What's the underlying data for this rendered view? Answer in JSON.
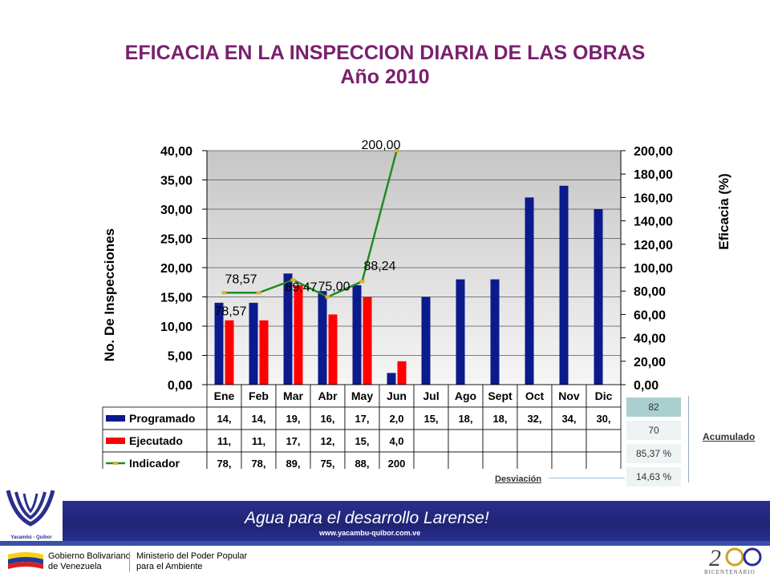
{
  "title": "EFICACIA EN LA INSPECCION DIARIA DE LAS OBRAS",
  "subtitle": "Año 2010",
  "chart_data": {
    "type": "bar",
    "categories": [
      "Ene",
      "Feb",
      "Mar",
      "Abr",
      "May",
      "Jun",
      "Jul",
      "Ago",
      "Sept",
      "Oct",
      "Nov",
      "Dic"
    ],
    "ylabel": "No. De Inspecciones",
    "y2label": "Eficacia (%)",
    "ylim": [
      0,
      40
    ],
    "y2lim": [
      0,
      200
    ],
    "yticks": [
      "0,00",
      "5,00",
      "10,00",
      "15,00",
      "20,00",
      "25,00",
      "30,00",
      "35,00",
      "40,00"
    ],
    "y2ticks": [
      "0,00",
      "20,00",
      "40,00",
      "60,00",
      "80,00",
      "100,00",
      "120,00",
      "140,00",
      "160,00",
      "180,00",
      "200,00"
    ],
    "grid": true,
    "series": [
      {
        "name": "Programado",
        "type": "bar",
        "axis": "left",
        "color": "#0b1a8c",
        "values": [
          14,
          14,
          19,
          16,
          17,
          2,
          15,
          18,
          18,
          32,
          34,
          30
        ],
        "table_values": [
          "14,",
          "14,",
          "19,",
          "16,",
          "17,",
          "2,0",
          "15,",
          "18,",
          "18,",
          "32,",
          "34,",
          "30,"
        ]
      },
      {
        "name": "Ejecutado",
        "type": "bar",
        "axis": "left",
        "color": "#ff0000",
        "values": [
          11,
          11,
          17,
          12,
          15,
          4,
          null,
          null,
          null,
          null,
          null,
          null
        ],
        "table_values": [
          "11,",
          "11,",
          "17,",
          "12,",
          "15,",
          "4,0",
          "",
          "",
          "",
          "",
          "",
          ""
        ]
      },
      {
        "name": "Indicador",
        "type": "line",
        "axis": "right",
        "color": "#1f8c1f",
        "marker_color": "#e0b030",
        "values": [
          78.57,
          78.57,
          89.47,
          75.0,
          88.24,
          200.0,
          null,
          null,
          null,
          null,
          null,
          null
        ],
        "labels": [
          "78,57",
          "78,57",
          "89,47",
          "75,00",
          "88,24",
          "200,00"
        ],
        "table_values": [
          "78,",
          "78,",
          "89,",
          "75,",
          "88,",
          "200",
          "",
          "",
          "",
          "",
          "",
          ""
        ]
      }
    ]
  },
  "accumulated": {
    "values": [
      "82",
      "70",
      "85,37 %",
      "14,63 %"
    ],
    "label": "Acumulado",
    "deviation_label": "Desviación"
  },
  "footer": {
    "logo_text": "Yacambú - Quíbor",
    "slogan": "Agua para el desarrollo Larense!",
    "website": "www.yacambu-quibor.com.ve",
    "gob_line1": "Gobierno Bolivariano",
    "gob_line2": "de Venezuela",
    "min_line1": "Ministerio del Poder Popular",
    "min_line2": "para el Ambiente",
    "bicentenario": "BICENTENARIO"
  },
  "colors": {
    "title": "#7a1f6e",
    "plot_bg_top": "#c8c8c8",
    "plot_bg_bottom": "#f4f4f4",
    "banner": "#242a86"
  }
}
